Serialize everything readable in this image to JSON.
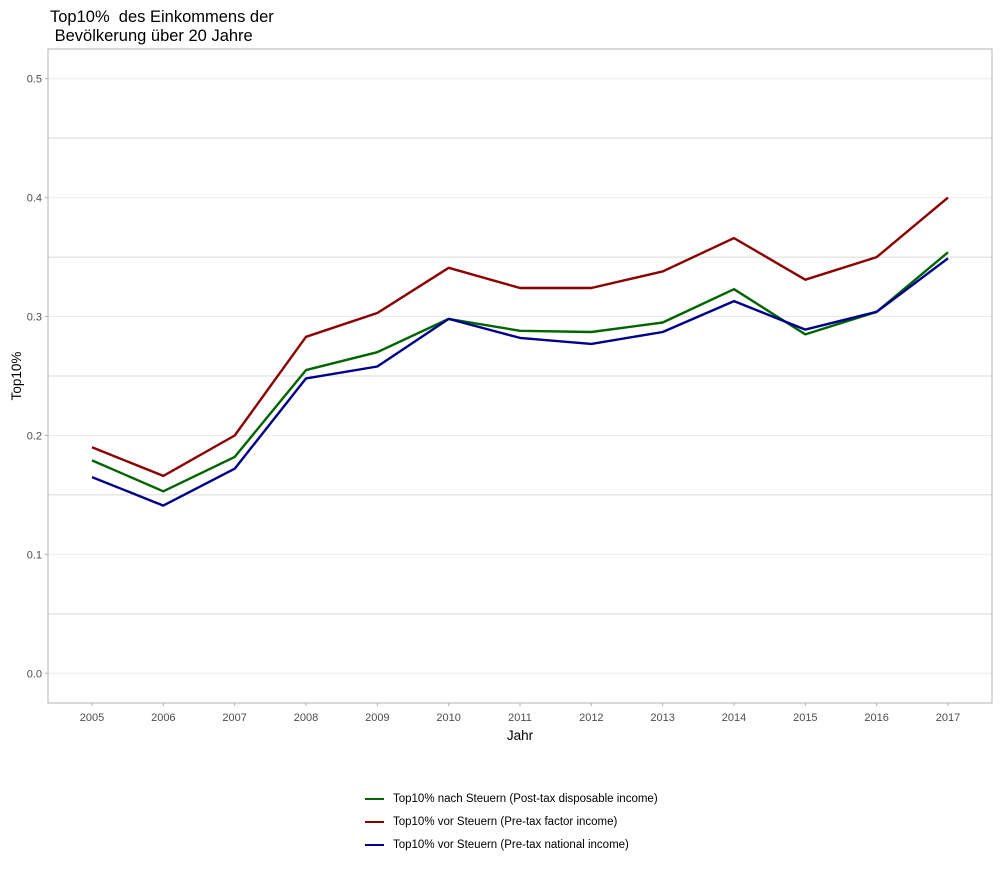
{
  "title": "Top10%  des Einkommens der\n Bevölkerung über 20 Jahre",
  "chart_data": {
    "type": "line",
    "title": "Top10%  des Einkommens der\n Bevölkerung über 20 Jahre",
    "xlabel": "Jahr",
    "ylabel": "Top10%",
    "x": [
      "2005",
      "2006",
      "2007",
      "2008",
      "2009",
      "2010",
      "2011",
      "2012",
      "2013",
      "2014",
      "2015",
      "2016",
      "2017"
    ],
    "ylim": [
      -0.025,
      0.525
    ],
    "yticks": [
      0.0,
      0.1,
      0.2,
      0.3,
      0.4,
      0.5
    ],
    "ytick_labels": [
      "0.0",
      "0.1",
      "0.2",
      "0.3",
      "0.4",
      "0.5"
    ],
    "grid": true,
    "legend_position": "bottom",
    "series": [
      {
        "name": "Top10% nach Steuern (Post-tax disposable income)",
        "color": "#006400",
        "values": [
          0.179,
          0.153,
          0.182,
          0.255,
          0.27,
          0.298,
          0.288,
          0.287,
          0.295,
          0.323,
          0.285,
          0.304,
          0.354
        ]
      },
      {
        "name": "Top10% vor Steuern (Pre-tax factor income)",
        "color": "#8B0000",
        "values": [
          0.19,
          0.166,
          0.2,
          0.283,
          0.303,
          0.341,
          0.324,
          0.324,
          0.338,
          0.366,
          0.331,
          0.35,
          0.4
        ]
      },
      {
        "name": "Top10% vor Steuern (Pre-tax national income)",
        "color": "#00008B",
        "values": [
          0.165,
          0.141,
          0.172,
          0.248,
          0.258,
          0.298,
          0.282,
          0.277,
          0.287,
          0.313,
          0.289,
          0.304,
          0.349
        ]
      }
    ]
  }
}
